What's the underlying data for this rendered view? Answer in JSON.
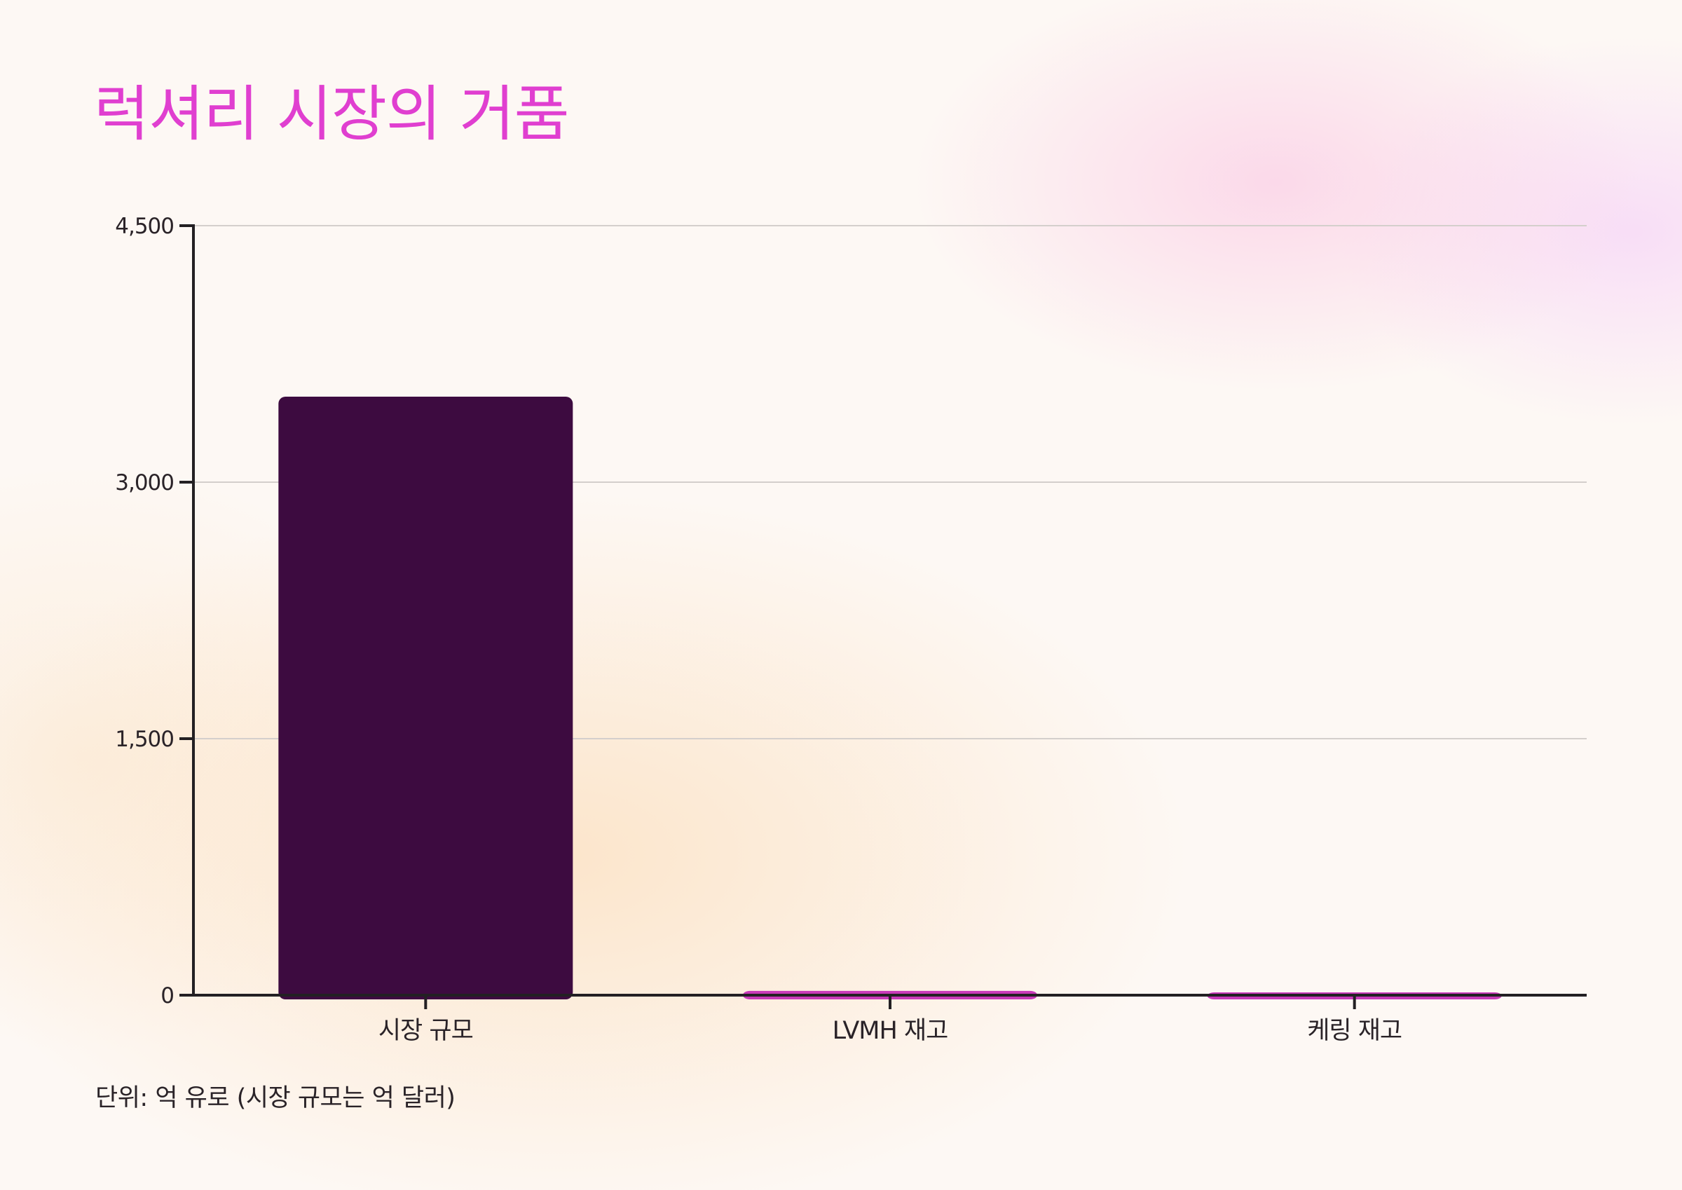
{
  "title": "럭셔리 시장의 거품",
  "note": "단위: 억 유로 (시장 규모는 억 달러)",
  "colors": {
    "title": "#e03fd0",
    "primary_bar": "#3d0b40",
    "secondary_bar": "#c83ab8",
    "axis": "#232023",
    "grid": "#d4cfcc",
    "text": "#2a2328"
  },
  "chart_data": {
    "type": "bar",
    "categories": [
      "시장 규모",
      "LVMH 재고",
      "케링 재고"
    ],
    "values": [
      3500,
      25,
      10
    ],
    "ylim": [
      0,
      4500
    ],
    "yticks": [
      0,
      1500,
      3000,
      4500
    ],
    "ytick_labels": [
      "0",
      "1,500",
      "3,000",
      "4,500"
    ],
    "grid": true,
    "legend": "none"
  }
}
